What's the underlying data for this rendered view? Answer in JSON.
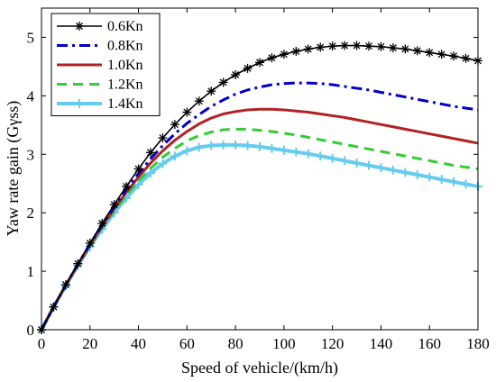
{
  "chart_data": {
    "type": "line",
    "xlabel": "Speed of vehicle/(km/h)",
    "ylabel": "Yaw rate gain (Gγss)",
    "xlim": [
      0,
      180
    ],
    "ylim": [
      0,
      5.5
    ],
    "xticks": [
      0,
      20,
      40,
      60,
      80,
      100,
      120,
      140,
      160,
      180
    ],
    "yticks": [
      0,
      1,
      2,
      3,
      4,
      5
    ],
    "grid": false,
    "legend_position": "top-left",
    "x": [
      0,
      5,
      10,
      15,
      20,
      25,
      30,
      35,
      40,
      45,
      50,
      55,
      60,
      65,
      70,
      75,
      80,
      85,
      90,
      95,
      100,
      105,
      110,
      115,
      120,
      125,
      130,
      135,
      140,
      145,
      150,
      155,
      160,
      165,
      170,
      175,
      180
    ],
    "series": [
      {
        "name": "0.6Kn",
        "color": "#000000",
        "style": "solid-asterisk",
        "values": [
          0,
          0.39,
          0.77,
          1.13,
          1.48,
          1.82,
          2.14,
          2.45,
          2.75,
          3.03,
          3.28,
          3.51,
          3.72,
          3.91,
          4.08,
          4.23,
          4.36,
          4.47,
          4.57,
          4.65,
          4.71,
          4.76,
          4.8,
          4.83,
          4.85,
          4.86,
          4.86,
          4.85,
          4.84,
          4.82,
          4.8,
          4.77,
          4.74,
          4.71,
          4.68,
          4.64,
          4.6
        ]
      },
      {
        "name": "0.8Kn",
        "color": "#0000cc",
        "style": "dash-dot",
        "values": [
          0,
          0.39,
          0.76,
          1.12,
          1.46,
          1.79,
          2.1,
          2.4,
          2.67,
          2.92,
          3.15,
          3.35,
          3.53,
          3.68,
          3.82,
          3.93,
          4.03,
          4.1,
          4.15,
          4.19,
          4.21,
          4.22,
          4.22,
          4.21,
          4.19,
          4.16,
          4.13,
          4.1,
          4.06,
          4.02,
          3.98,
          3.94,
          3.9,
          3.86,
          3.82,
          3.79,
          3.76
        ]
      },
      {
        "name": "1.0Kn",
        "color": "#b22222",
        "style": "solid-thick",
        "values": [
          0,
          0.39,
          0.76,
          1.11,
          1.45,
          1.77,
          2.07,
          2.35,
          2.61,
          2.85,
          3.06,
          3.24,
          3.39,
          3.52,
          3.62,
          3.69,
          3.73,
          3.76,
          3.77,
          3.77,
          3.76,
          3.74,
          3.72,
          3.69,
          3.66,
          3.63,
          3.59,
          3.55,
          3.51,
          3.47,
          3.43,
          3.39,
          3.35,
          3.31,
          3.27,
          3.23,
          3.19
        ]
      },
      {
        "name": "1.2Kn",
        "color": "#33cc33",
        "style": "dashed",
        "values": [
          0,
          0.39,
          0.76,
          1.1,
          1.43,
          1.74,
          2.03,
          2.3,
          2.54,
          2.76,
          2.95,
          3.1,
          3.23,
          3.32,
          3.38,
          3.42,
          3.43,
          3.43,
          3.41,
          3.39,
          3.36,
          3.33,
          3.29,
          3.25,
          3.21,
          3.17,
          3.13,
          3.09,
          3.05,
          3.01,
          2.97,
          2.93,
          2.89,
          2.85,
          2.81,
          2.78,
          2.75
        ]
      },
      {
        "name": "1.4Kn",
        "color": "#66ccee",
        "style": "solid-plus",
        "values": [
          0,
          0.39,
          0.75,
          1.1,
          1.42,
          1.72,
          2.0,
          2.25,
          2.48,
          2.68,
          2.84,
          2.97,
          3.06,
          3.12,
          3.15,
          3.16,
          3.16,
          3.15,
          3.13,
          3.1,
          3.07,
          3.04,
          3.01,
          2.97,
          2.93,
          2.89,
          2.85,
          2.81,
          2.77,
          2.73,
          2.69,
          2.65,
          2.61,
          2.57,
          2.53,
          2.49,
          2.45
        ]
      }
    ]
  }
}
